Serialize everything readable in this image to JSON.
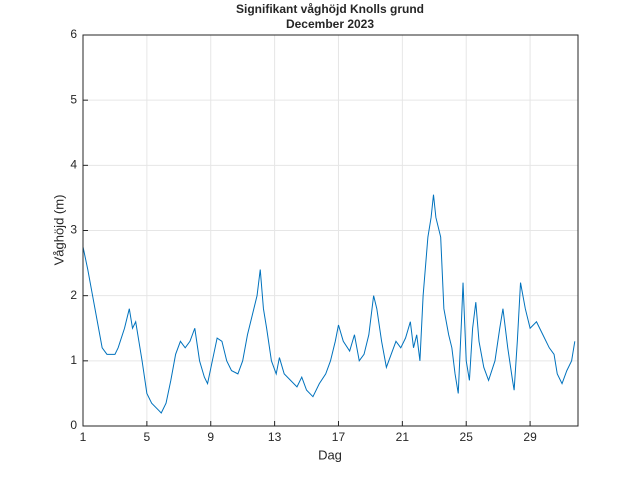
{
  "chart_data": {
    "type": "line",
    "title": "Signifikant våghöjd Knolls grund",
    "subtitle": "December 2023",
    "x_label": "Dag",
    "y_label": "Våghöjd (m)",
    "x": [
      1,
      1.3,
      1.6,
      1.9,
      2.2,
      2.5,
      3,
      3.2,
      3.6,
      3.9,
      4.1,
      4.3,
      4.5,
      4.7,
      5,
      5.3,
      5.7,
      5.9,
      6.2,
      6.5,
      6.8,
      7.1,
      7.4,
      7.7,
      8,
      8.3,
      8.6,
      8.8,
      9.1,
      9.4,
      9.7,
      10,
      10.3,
      10.7,
      11,
      11.3,
      11.6,
      11.9,
      12.1,
      12.3,
      12.5,
      12.8,
      13.1,
      13.3,
      13.6,
      14,
      14.4,
      14.7,
      15,
      15.4,
      15.8,
      16.2,
      16.5,
      16.8,
      17,
      17.3,
      17.7,
      18,
      18.3,
      18.6,
      18.9,
      19.2,
      19.4,
      19.7,
      20,
      20.3,
      20.6,
      20.9,
      21.2,
      21.5,
      21.7,
      21.9,
      22.1,
      22.3,
      22.6,
      22.8,
      22.95,
      23.1,
      23.4,
      23.6,
      23.9,
      24.1,
      24.3,
      24.5,
      24.7,
      24.8,
      25,
      25.2,
      25.4,
      25.6,
      25.8,
      26.1,
      26.4,
      26.8,
      27.1,
      27.3,
      27.6,
      27.9,
      28,
      28.2,
      28.4,
      28.7,
      29,
      29.4,
      29.8,
      30.2,
      30.5,
      30.7,
      31,
      31.3,
      31.6,
      31.8
    ],
    "series": [
      {
        "name": "Våghöjd",
        "color": "#0072bd",
        "values": [
          2.75,
          2.4,
          2.0,
          1.6,
          1.2,
          1.1,
          1.1,
          1.2,
          1.5,
          1.8,
          1.5,
          1.6,
          1.3,
          1.0,
          0.5,
          0.35,
          0.25,
          0.2,
          0.35,
          0.7,
          1.1,
          1.3,
          1.2,
          1.3,
          1.5,
          1.0,
          0.75,
          0.65,
          1.0,
          1.35,
          1.3,
          1.0,
          0.85,
          0.8,
          1.0,
          1.4,
          1.7,
          2.0,
          2.4,
          1.8,
          1.5,
          1.0,
          0.8,
          1.05,
          0.8,
          0.7,
          0.6,
          0.75,
          0.55,
          0.45,
          0.65,
          0.8,
          1.0,
          1.3,
          1.55,
          1.3,
          1.15,
          1.4,
          1.0,
          1.1,
          1.4,
          2.0,
          1.8,
          1.3,
          0.9,
          1.1,
          1.3,
          1.2,
          1.35,
          1.6,
          1.2,
          1.4,
          1.0,
          2.0,
          2.9,
          3.2,
          3.55,
          3.2,
          2.9,
          1.8,
          1.4,
          1.2,
          0.8,
          0.5,
          1.6,
          2.2,
          1.0,
          0.7,
          1.5,
          1.9,
          1.3,
          0.9,
          0.7,
          1.0,
          1.5,
          1.8,
          1.2,
          0.7,
          0.55,
          1.3,
          2.2,
          1.8,
          1.5,
          1.6,
          1.4,
          1.2,
          1.1,
          0.8,
          0.65,
          0.85,
          1.0,
          1.3
        ]
      }
    ],
    "xlim": [
      1,
      32
    ],
    "xticks": [
      1,
      5,
      9,
      13,
      17,
      21,
      25,
      29
    ],
    "ylim": [
      0,
      6
    ],
    "yticks": [
      0,
      1,
      2,
      3,
      4,
      5,
      6
    ],
    "grid": true
  }
}
